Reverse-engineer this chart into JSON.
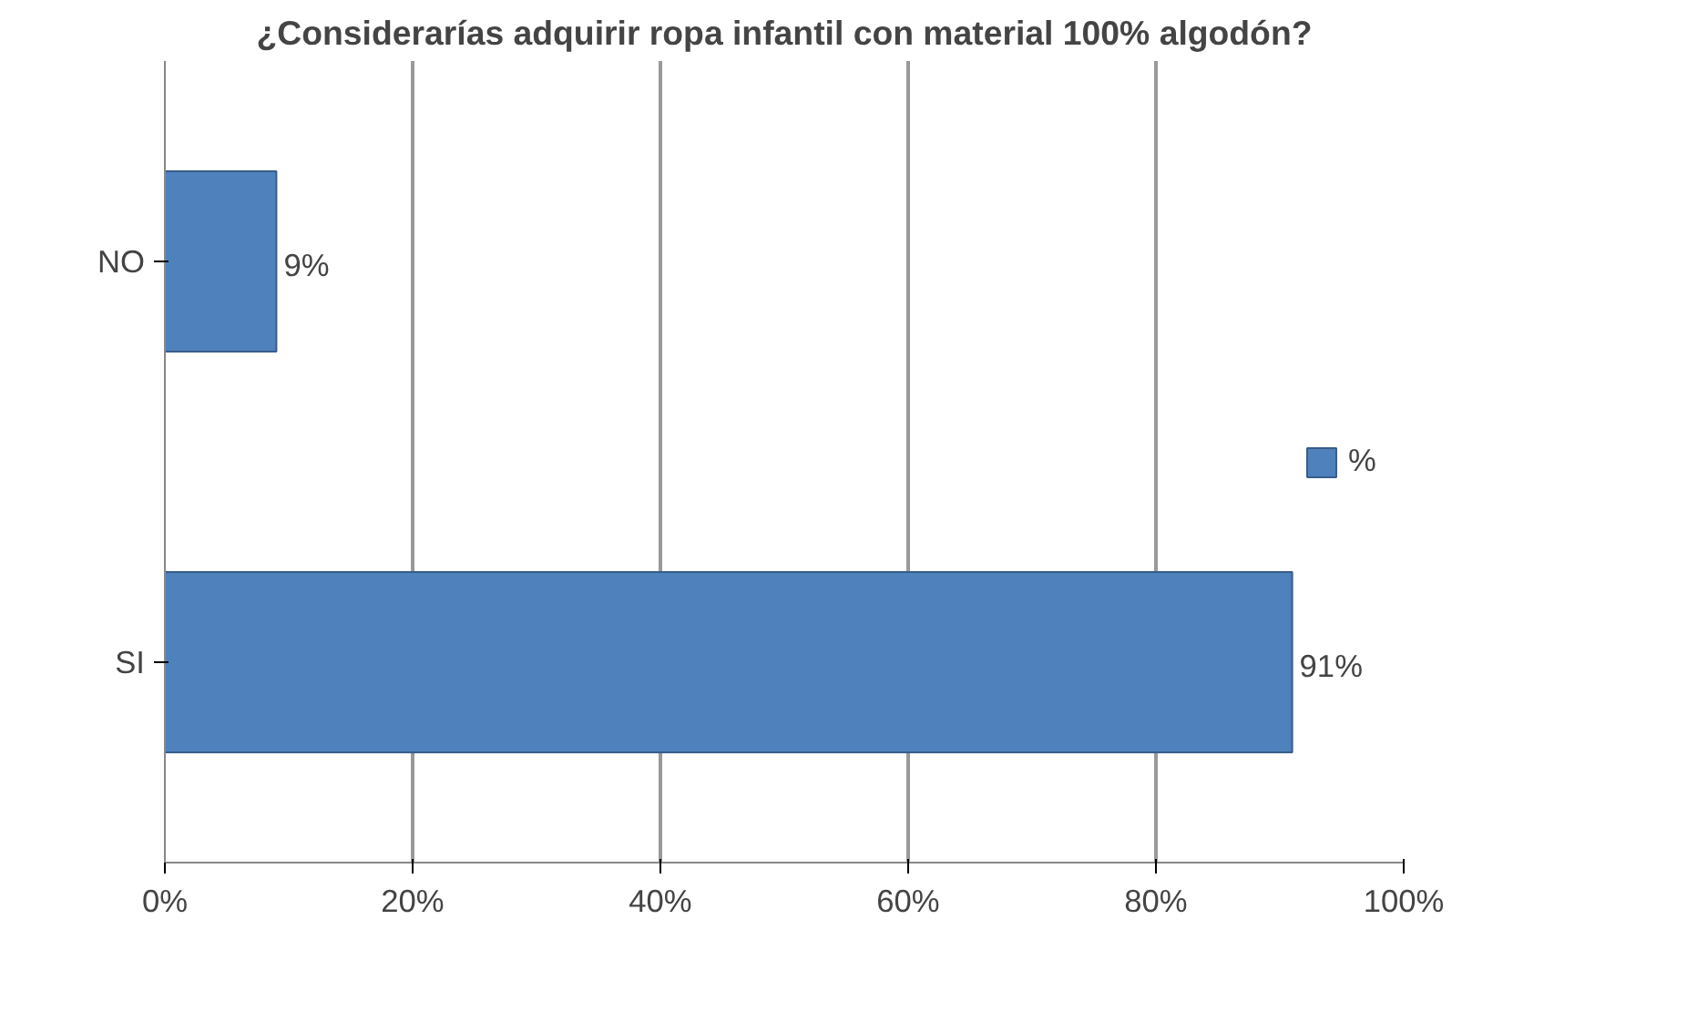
{
  "chart_data": {
    "type": "bar",
    "orientation": "horizontal",
    "title": "¿Considerarías adquirir ropa infantil con material 100% algodón?",
    "categories": [
      "NO",
      "SI"
    ],
    "series": [
      {
        "name": "%",
        "color": "#4f81bd",
        "values": [
          9,
          91
        ],
        "value_labels": [
          "9%",
          "91%"
        ]
      }
    ],
    "xlim": [
      0,
      100
    ],
    "xticks": [
      {
        "value": 0,
        "label": "0%"
      },
      {
        "value": 20,
        "label": "20%"
      },
      {
        "value": 40,
        "label": "40%"
      },
      {
        "value": 60,
        "label": "60%"
      },
      {
        "value": 80,
        "label": "80%"
      },
      {
        "value": 100,
        "label": "100%"
      }
    ],
    "grid": "x",
    "legend": "right"
  }
}
